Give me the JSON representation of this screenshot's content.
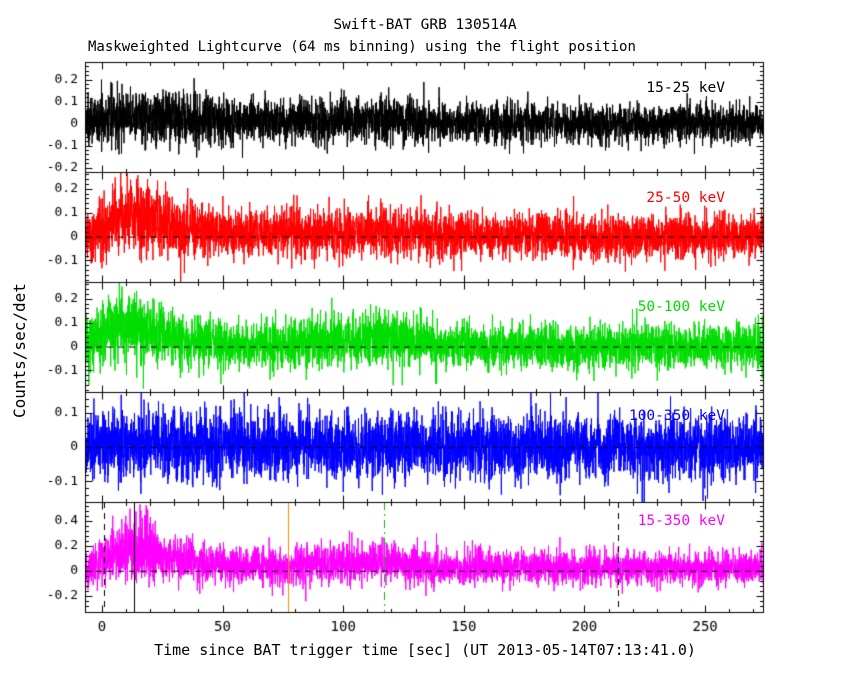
{
  "chart_data": {
    "type": "line",
    "title": "Swift-BAT GRB 130514A",
    "subtitle": "Maskweighted Lightcurve (64 ms binning) using the flight position",
    "xlabel": "Time since BAT trigger time [sec] (UT 2013-05-14T07:13:41.0)",
    "ylabel": "Counts/sec/det",
    "bin_label": "64 ms binning",
    "xlim": [
      -7,
      274
    ],
    "xticks": [
      0,
      50,
      100,
      150,
      200,
      250
    ],
    "x_minor_step": 10,
    "background": "#ffffff",
    "axis_color": "#000000",
    "zero_line": {
      "color": "#000000",
      "style": "dashed"
    },
    "panels": [
      {
        "label": "15-25 keV",
        "color": "#000000",
        "ylim": [
          -0.22,
          0.28
        ],
        "yticks": [
          -0.2,
          -0.1,
          0,
          0.1,
          0.2
        ],
        "envelope": [
          [
            -7,
            0.005,
            0.05
          ],
          [
            0,
            0.02,
            0.06
          ],
          [
            5,
            0.04,
            0.07
          ],
          [
            18,
            0.035,
            0.066
          ],
          [
            35,
            0.02,
            0.06
          ],
          [
            60,
            0.01,
            0.05
          ],
          [
            95,
            0.012,
            0.05
          ],
          [
            115,
            0.02,
            0.052
          ],
          [
            140,
            0.005,
            0.047
          ],
          [
            200,
            0.0,
            0.045
          ],
          [
            274,
            0.0,
            0.045
          ]
        ]
      },
      {
        "label": "25-50 keV",
        "color": "#ff0000",
        "ylim": [
          -0.19,
          0.27
        ],
        "yticks": [
          -0.1,
          0,
          0.1,
          0.2
        ],
        "envelope": [
          [
            -7,
            0.0,
            0.05
          ],
          [
            0,
            0.03,
            0.06
          ],
          [
            8,
            0.085,
            0.072
          ],
          [
            20,
            0.075,
            0.07
          ],
          [
            35,
            0.03,
            0.06
          ],
          [
            60,
            0.012,
            0.05
          ],
          [
            100,
            0.015,
            0.052
          ],
          [
            115,
            0.025,
            0.055
          ],
          [
            140,
            0.008,
            0.048
          ],
          [
            200,
            0.0,
            0.046
          ],
          [
            274,
            0.0,
            0.046
          ]
        ]
      },
      {
        "label": "50-100 keV",
        "color": "#00dd00",
        "ylim": [
          -0.19,
          0.27
        ],
        "yticks": [
          -0.1,
          0,
          0.1,
          0.2
        ],
        "envelope": [
          [
            -7,
            0.0,
            0.05
          ],
          [
            0,
            0.045,
            0.07
          ],
          [
            7,
            0.09,
            0.076
          ],
          [
            18,
            0.075,
            0.07
          ],
          [
            35,
            0.025,
            0.058
          ],
          [
            60,
            0.005,
            0.05
          ],
          [
            100,
            0.02,
            0.053
          ],
          [
            117,
            0.035,
            0.058
          ],
          [
            140,
            0.008,
            0.048
          ],
          [
            200,
            0.0,
            0.046
          ],
          [
            274,
            0.0,
            0.046
          ]
        ]
      },
      {
        "label": "100-350 keV",
        "color": "#0000ff",
        "ylim": [
          -0.16,
          0.16
        ],
        "yticks": [
          -0.1,
          0,
          0.1
        ],
        "envelope": [
          [
            -7,
            0.0,
            0.045
          ],
          [
            3,
            0.012,
            0.055
          ],
          [
            25,
            0.01,
            0.052
          ],
          [
            60,
            0.002,
            0.047
          ],
          [
            120,
            0.004,
            0.048
          ],
          [
            200,
            0.0,
            0.046
          ],
          [
            274,
            0.0,
            0.046
          ]
        ]
      },
      {
        "label": "15-350 keV",
        "color": "#ff00ff",
        "ylim": [
          -0.33,
          0.55
        ],
        "yticks": [
          -0.2,
          0,
          0.2,
          0.4
        ],
        "envelope": [
          [
            -7,
            0.01,
            0.07
          ],
          [
            0,
            0.09,
            0.1
          ],
          [
            8,
            0.18,
            0.12
          ],
          [
            15,
            0.19,
            0.125
          ],
          [
            25,
            0.12,
            0.1
          ],
          [
            40,
            0.06,
            0.085
          ],
          [
            60,
            0.035,
            0.075
          ],
          [
            100,
            0.05,
            0.08
          ],
          [
            117,
            0.07,
            0.082
          ],
          [
            140,
            0.03,
            0.072
          ],
          [
            200,
            0.02,
            0.068
          ],
          [
            274,
            0.02,
            0.068
          ]
        ]
      }
    ],
    "markers": [
      {
        "t": 0.7,
        "color": "#000000",
        "style": "dashed",
        "panel": 4
      },
      {
        "t": 13.5,
        "color": "#000000",
        "style": "solid",
        "panel": 4
      },
      {
        "t": 77.0,
        "color": "#ff8c00",
        "style": "solid",
        "panel": 4
      },
      {
        "t": 117.0,
        "color": "#00bb00",
        "style": "dashdot",
        "panel": 4
      },
      {
        "t": 214.0,
        "color": "#000000",
        "style": "dashed",
        "panel": 4
      }
    ]
  }
}
